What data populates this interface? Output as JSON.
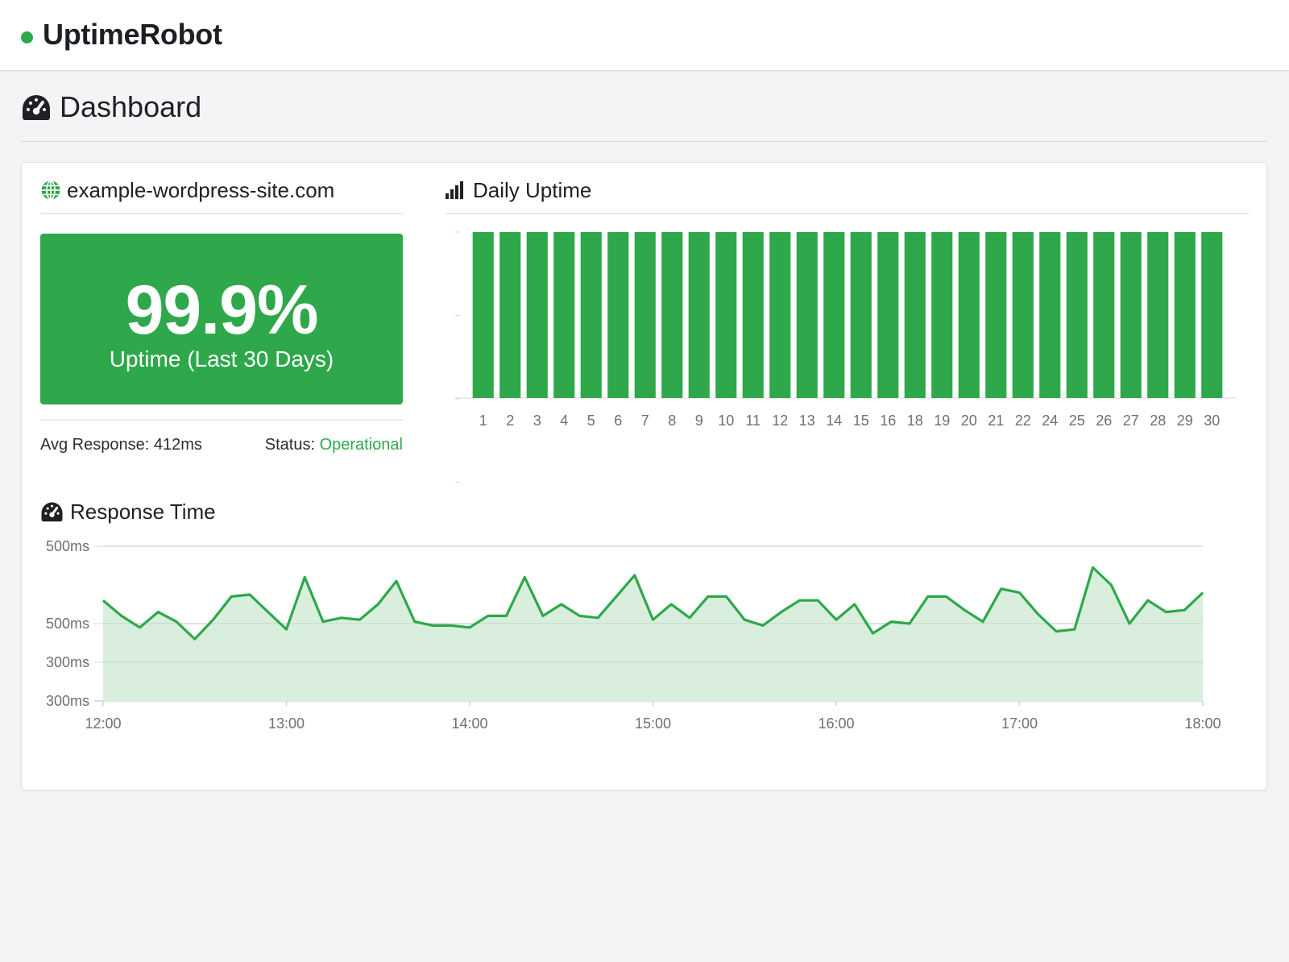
{
  "app": {
    "name": "UptimeRobot",
    "accent_color": "#2ea84a",
    "status_color": "#2ea84a"
  },
  "page": {
    "title": "Dashboard",
    "icon": "gauge-icon"
  },
  "monitor": {
    "site_name": "example-wordpress-site.com",
    "site_icon": "globe-icon",
    "uptime_value": "99.9%",
    "uptime_caption": "Uptime (Last 30 Days)",
    "avg_response_label": "Avg Response:",
    "avg_response_value": "412ms",
    "status_label": "Status:",
    "status_value": "Operational"
  },
  "daily_uptime": {
    "title": "Daily Uptime",
    "icon": "bar-chart-icon"
  },
  "response_time": {
    "title": "Response Time",
    "icon": "gauge-icon"
  },
  "chart_data": [
    {
      "type": "bar",
      "title": "Daily Uptime",
      "categories": [
        "1",
        "2",
        "3",
        "4",
        "5",
        "6",
        "7",
        "8",
        "9",
        "10",
        "11",
        "12",
        "13",
        "14",
        "15",
        "16",
        "18",
        "19",
        "20",
        "21",
        "22",
        "24",
        "25",
        "26",
        "27",
        "28",
        "29",
        "30"
      ],
      "values": [
        100,
        100,
        100,
        100,
        100,
        100,
        100,
        100,
        100,
        100,
        100,
        100,
        100,
        100,
        100,
        100,
        100,
        100,
        100,
        100,
        100,
        100,
        100,
        100,
        100,
        100,
        100,
        100
      ],
      "ylim": [
        0,
        100
      ],
      "grid": false,
      "bar_color": "#2ea84a"
    },
    {
      "type": "area",
      "title": "Response Time",
      "x_ticks": [
        "12:00",
        "13:00",
        "14:00",
        "15:00",
        "16:00",
        "17:00",
        "18:00"
      ],
      "y_ticks": [
        "300ms",
        "300ms",
        "500ms",
        "500ms"
      ],
      "y_tick_positions": [
        0,
        1,
        2,
        4
      ],
      "ylim": [
        0,
        4
      ],
      "grid": true,
      "line_color": "#2ea84a",
      "fill_color": "#d9eedd",
      "x": [
        0,
        0.1,
        0.2,
        0.3,
        0.4,
        0.5,
        0.6,
        0.7,
        0.8,
        0.9,
        1,
        1.1,
        1.2,
        1.3,
        1.4,
        1.5,
        1.6,
        1.7,
        1.8,
        1.9,
        2,
        2.1,
        2.2,
        2.3,
        2.4,
        2.5,
        2.6,
        2.7,
        2.8,
        2.9,
        3,
        3.1,
        3.2,
        3.3,
        3.4,
        3.5,
        3.6,
        3.7,
        3.8,
        3.9,
        4,
        4.1,
        4.2,
        4.3,
        4.4,
        4.5,
        4.6,
        4.7,
        4.8,
        4.9,
        5,
        5.1,
        5.2,
        5.3,
        5.4,
        5.5,
        5.6,
        5.7,
        5.8,
        5.9,
        6
      ],
      "y": [
        2.6,
        2.2,
        1.9,
        2.3,
        2.05,
        1.6,
        2.1,
        2.7,
        2.75,
        2.3,
        1.85,
        3.2,
        2.05,
        2.15,
        2.1,
        2.5,
        3.1,
        2.05,
        1.95,
        1.95,
        1.9,
        2.2,
        2.2,
        3.2,
        2.2,
        2.5,
        2.2,
        2.15,
        2.7,
        3.25,
        2.1,
        2.5,
        2.15,
        2.7,
        2.7,
        2.1,
        1.95,
        2.3,
        2.6,
        2.6,
        2.1,
        2.5,
        1.75,
        2.05,
        2.0,
        2.7,
        2.7,
        2.35,
        2.05,
        2.9,
        2.8,
        2.25,
        1.8,
        1.85,
        3.45,
        3.0,
        2.0,
        2.6,
        2.3,
        2.35,
        2.8
      ]
    }
  ]
}
